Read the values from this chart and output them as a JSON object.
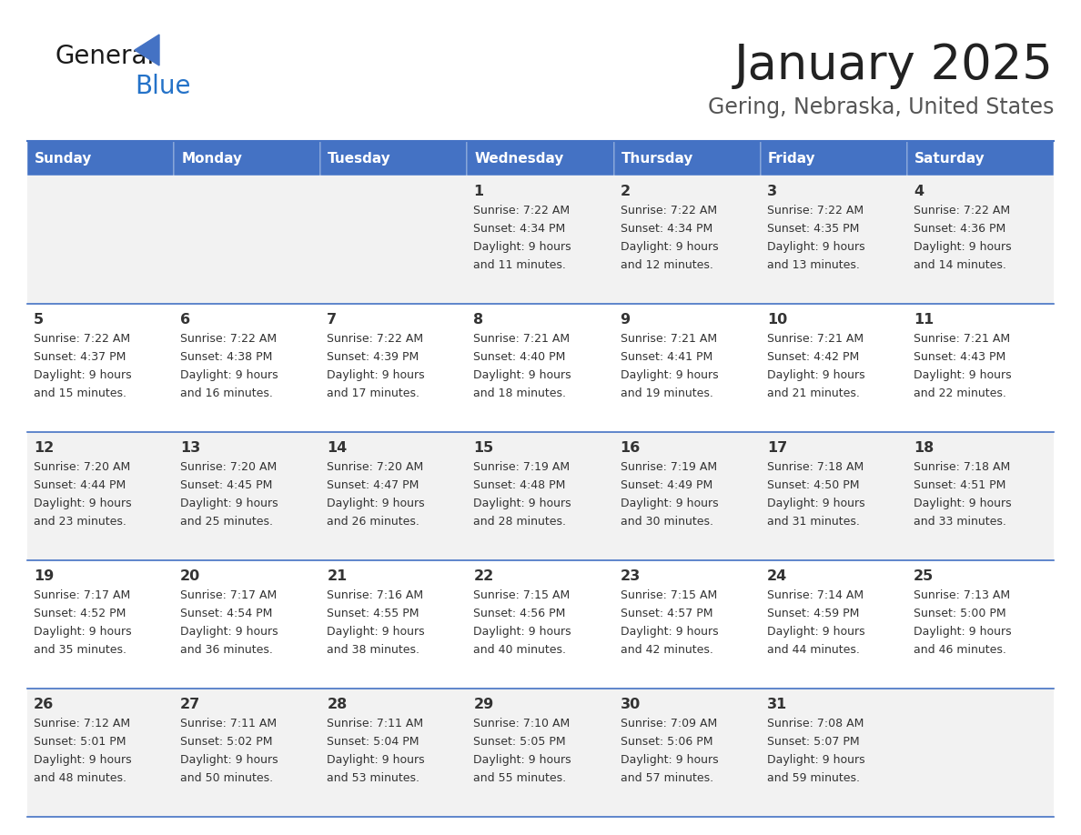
{
  "title": "January 2025",
  "subtitle": "Gering, Nebraska, United States",
  "header_bg": "#4472c4",
  "header_text_color": "#ffffff",
  "cell_bg_odd": "#f2f2f2",
  "cell_bg_even": "#ffffff",
  "day_headers": [
    "Sunday",
    "Monday",
    "Tuesday",
    "Wednesday",
    "Thursday",
    "Friday",
    "Saturday"
  ],
  "title_color": "#222222",
  "subtitle_color": "#555555",
  "line_color": "#4472c4",
  "text_color": "#333333",
  "logo_general_color": "#1a1a1a",
  "logo_blue_color": "#2472c8",
  "logo_triangle_color": "#4472c4",
  "days": [
    {
      "day": null,
      "sunrise": null,
      "sunset": null,
      "daylight": null
    },
    {
      "day": null,
      "sunrise": null,
      "sunset": null,
      "daylight": null
    },
    {
      "day": null,
      "sunrise": null,
      "sunset": null,
      "daylight": null
    },
    {
      "day": 1,
      "sunrise": "7:22 AM",
      "sunset": "4:34 PM",
      "daylight": "9 hours\nand 11 minutes."
    },
    {
      "day": 2,
      "sunrise": "7:22 AM",
      "sunset": "4:34 PM",
      "daylight": "9 hours\nand 12 minutes."
    },
    {
      "day": 3,
      "sunrise": "7:22 AM",
      "sunset": "4:35 PM",
      "daylight": "9 hours\nand 13 minutes."
    },
    {
      "day": 4,
      "sunrise": "7:22 AM",
      "sunset": "4:36 PM",
      "daylight": "9 hours\nand 14 minutes."
    },
    {
      "day": 5,
      "sunrise": "7:22 AM",
      "sunset": "4:37 PM",
      "daylight": "9 hours\nand 15 minutes."
    },
    {
      "day": 6,
      "sunrise": "7:22 AM",
      "sunset": "4:38 PM",
      "daylight": "9 hours\nand 16 minutes."
    },
    {
      "day": 7,
      "sunrise": "7:22 AM",
      "sunset": "4:39 PM",
      "daylight": "9 hours\nand 17 minutes."
    },
    {
      "day": 8,
      "sunrise": "7:21 AM",
      "sunset": "4:40 PM",
      "daylight": "9 hours\nand 18 minutes."
    },
    {
      "day": 9,
      "sunrise": "7:21 AM",
      "sunset": "4:41 PM",
      "daylight": "9 hours\nand 19 minutes."
    },
    {
      "day": 10,
      "sunrise": "7:21 AM",
      "sunset": "4:42 PM",
      "daylight": "9 hours\nand 21 minutes."
    },
    {
      "day": 11,
      "sunrise": "7:21 AM",
      "sunset": "4:43 PM",
      "daylight": "9 hours\nand 22 minutes."
    },
    {
      "day": 12,
      "sunrise": "7:20 AM",
      "sunset": "4:44 PM",
      "daylight": "9 hours\nand 23 minutes."
    },
    {
      "day": 13,
      "sunrise": "7:20 AM",
      "sunset": "4:45 PM",
      "daylight": "9 hours\nand 25 minutes."
    },
    {
      "day": 14,
      "sunrise": "7:20 AM",
      "sunset": "4:47 PM",
      "daylight": "9 hours\nand 26 minutes."
    },
    {
      "day": 15,
      "sunrise": "7:19 AM",
      "sunset": "4:48 PM",
      "daylight": "9 hours\nand 28 minutes."
    },
    {
      "day": 16,
      "sunrise": "7:19 AM",
      "sunset": "4:49 PM",
      "daylight": "9 hours\nand 30 minutes."
    },
    {
      "day": 17,
      "sunrise": "7:18 AM",
      "sunset": "4:50 PM",
      "daylight": "9 hours\nand 31 minutes."
    },
    {
      "day": 18,
      "sunrise": "7:18 AM",
      "sunset": "4:51 PM",
      "daylight": "9 hours\nand 33 minutes."
    },
    {
      "day": 19,
      "sunrise": "7:17 AM",
      "sunset": "4:52 PM",
      "daylight": "9 hours\nand 35 minutes."
    },
    {
      "day": 20,
      "sunrise": "7:17 AM",
      "sunset": "4:54 PM",
      "daylight": "9 hours\nand 36 minutes."
    },
    {
      "day": 21,
      "sunrise": "7:16 AM",
      "sunset": "4:55 PM",
      "daylight": "9 hours\nand 38 minutes."
    },
    {
      "day": 22,
      "sunrise": "7:15 AM",
      "sunset": "4:56 PM",
      "daylight": "9 hours\nand 40 minutes."
    },
    {
      "day": 23,
      "sunrise": "7:15 AM",
      "sunset": "4:57 PM",
      "daylight": "9 hours\nand 42 minutes."
    },
    {
      "day": 24,
      "sunrise": "7:14 AM",
      "sunset": "4:59 PM",
      "daylight": "9 hours\nand 44 minutes."
    },
    {
      "day": 25,
      "sunrise": "7:13 AM",
      "sunset": "5:00 PM",
      "daylight": "9 hours\nand 46 minutes."
    },
    {
      "day": 26,
      "sunrise": "7:12 AM",
      "sunset": "5:01 PM",
      "daylight": "9 hours\nand 48 minutes."
    },
    {
      "day": 27,
      "sunrise": "7:11 AM",
      "sunset": "5:02 PM",
      "daylight": "9 hours\nand 50 minutes."
    },
    {
      "day": 28,
      "sunrise": "7:11 AM",
      "sunset": "5:04 PM",
      "daylight": "9 hours\nand 53 minutes."
    },
    {
      "day": 29,
      "sunrise": "7:10 AM",
      "sunset": "5:05 PM",
      "daylight": "9 hours\nand 55 minutes."
    },
    {
      "day": 30,
      "sunrise": "7:09 AM",
      "sunset": "5:06 PM",
      "daylight": "9 hours\nand 57 minutes."
    },
    {
      "day": 31,
      "sunrise": "7:08 AM",
      "sunset": "5:07 PM",
      "daylight": "9 hours\nand 59 minutes."
    },
    {
      "day": null,
      "sunrise": null,
      "sunset": null,
      "daylight": null
    }
  ]
}
